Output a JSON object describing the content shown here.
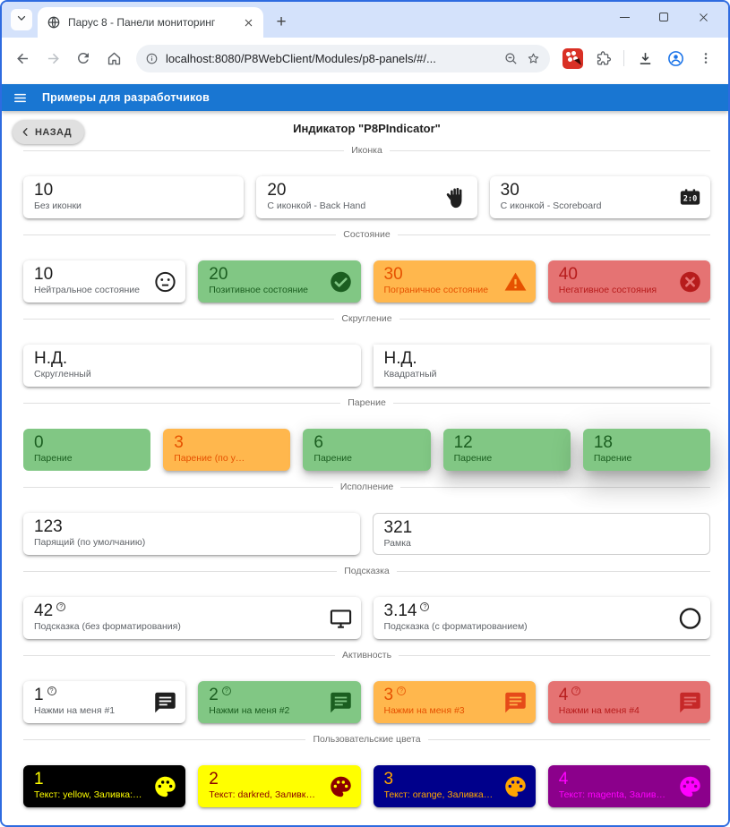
{
  "browser": {
    "tab_title": "Парус 8 - Панели мониторинг",
    "url": "localhost:8080/P8WebClient/Modules/p8-panels/#/...",
    "new_tab_glyph": "+"
  },
  "icons": {
    "help": "?",
    "kebab": "⋮",
    "scoreboard_text": "2:0"
  },
  "app": {
    "appbar_title": "Примеры для разработчиков",
    "back_label": "НАЗАД",
    "page_title": "Индикатор \"P8PIndicator\""
  },
  "colors": {
    "accent": "#1976d2",
    "window_border": "#2e6be0",
    "titlebar_bg": "#d4e2fb",
    "success_bg": "#81c784",
    "success_fg": "#1b5e20",
    "warning_bg": "#ffb74d",
    "warning_fg": "#e65100",
    "error_bg": "#e57373",
    "error_fg": "#b71c1c"
  },
  "sections": [
    {
      "title": "Иконка",
      "cards": [
        {
          "value": "10",
          "label": "Без иконки"
        },
        {
          "value": "20",
          "label": "С иконкой - Back Hand",
          "icon": "back-hand-icon",
          "icon_color": "#1f1f1f"
        },
        {
          "value": "30",
          "label": "С иконкой - Scoreboard",
          "icon": "scoreboard-icon",
          "icon_color": "#1f1f1f"
        }
      ]
    },
    {
      "title": "Состояние",
      "cards": [
        {
          "value": "10",
          "label": "Нейтральное состояние",
          "icon": "sentiment-neutral-icon",
          "icon_color": "#1f1f1f"
        },
        {
          "value": "20",
          "label": "Позитивное состояние",
          "bg": "#81c784",
          "fg": "#1b5e20",
          "icon": "check-circle-icon",
          "icon_color": "#1b5e20"
        },
        {
          "value": "30",
          "label": "Пограничное состояние",
          "bg": "#ffb74d",
          "fg": "#e65100",
          "icon": "warning-icon",
          "icon_color": "#e65100"
        },
        {
          "value": "40",
          "label": "Негативное состояния",
          "bg": "#e57373",
          "fg": "#b71c1c",
          "icon": "cancel-icon",
          "icon_color": "#b71c1c"
        }
      ]
    },
    {
      "title": "Скругление",
      "cards": [
        {
          "value": "Н.Д.",
          "label": "Скругленный"
        },
        {
          "value": "Н.Д.",
          "label": "Квадратный",
          "square": true
        }
      ]
    },
    {
      "title": "Парение",
      "cards": [
        {
          "value": "0",
          "label": "Парение",
          "bg": "#81c784",
          "fg": "#1b5e20",
          "elevation": 0
        },
        {
          "value": "3",
          "label": "Парение (по умолчанию)",
          "bg": "#ffb74d",
          "fg": "#e65100",
          "elevation": 3
        },
        {
          "value": "6",
          "label": "Парение",
          "bg": "#81c784",
          "fg": "#1b5e20",
          "elevation": 6
        },
        {
          "value": "12",
          "label": "Парение",
          "bg": "#81c784",
          "fg": "#1b5e20",
          "elevation": 12
        },
        {
          "value": "18",
          "label": "Парение",
          "bg": "#81c784",
          "fg": "#1b5e20",
          "elevation": 18
        }
      ]
    },
    {
      "title": "Исполнение",
      "cards": [
        {
          "value": "123",
          "label": "Парящий (по умолчанию)"
        },
        {
          "value": "321",
          "label": "Рамка",
          "outlined": true
        }
      ]
    },
    {
      "title": "Подсказка",
      "cards": [
        {
          "value": "42",
          "label": "Подсказка (без форматирования)",
          "help": true,
          "icon": "desktop-icon",
          "icon_color": "#1f1f1f"
        },
        {
          "value": "3.14",
          "label": "Подсказка (с форматированием)",
          "help": true,
          "icon": "circle-outline-icon",
          "icon_color": "#1f1f1f"
        }
      ]
    },
    {
      "title": "Активность",
      "cards": [
        {
          "value": "1",
          "label": "Нажми на меня #1",
          "help": true,
          "icon": "chat-icon",
          "icon_color": "#1f1f1f",
          "clickable": true
        },
        {
          "value": "2",
          "label": "Нажми на меня #2",
          "help": true,
          "bg": "#81c784",
          "fg": "#1b5e20",
          "icon": "chat-icon",
          "icon_color": "#1b5e20",
          "clickable": true
        },
        {
          "value": "3",
          "label": "Нажми на меня #3",
          "help": true,
          "bg": "#ffb74d",
          "fg": "#e65100",
          "icon": "chat-icon",
          "icon_color": "#e64a19",
          "clickable": true
        },
        {
          "value": "4",
          "label": "Нажми на меня #4",
          "help": true,
          "bg": "#e57373",
          "fg": "#b71c1c",
          "icon": "chat-icon",
          "icon_color": "#c62828",
          "clickable": true
        }
      ]
    },
    {
      "title": "Пользовательские цвета",
      "cards": [
        {
          "value": "1",
          "label": "Текст: yellow, Заливка: black",
          "bg": "#000000",
          "fg": "#ffff00",
          "icon": "palette-icon",
          "icon_color": "#ffff00"
        },
        {
          "value": "2",
          "label": "Текст: darkred, Заливка: yellow",
          "bg": "#ffff00",
          "fg": "#8b0000",
          "icon": "palette-icon",
          "icon_color": "#8b0000"
        },
        {
          "value": "3",
          "label": "Текст: orange, Заливка: darkblue",
          "bg": "#00008b",
          "fg": "#ffa500",
          "icon": "palette-icon",
          "icon_color": "#ffa500"
        },
        {
          "value": "4",
          "label": "Текст: magenta, Заливка: darkmage…",
          "bg": "#8b008b",
          "fg": "#ff00ff",
          "icon": "palette-icon",
          "icon_color": "#ff00ff"
        }
      ]
    }
  ]
}
